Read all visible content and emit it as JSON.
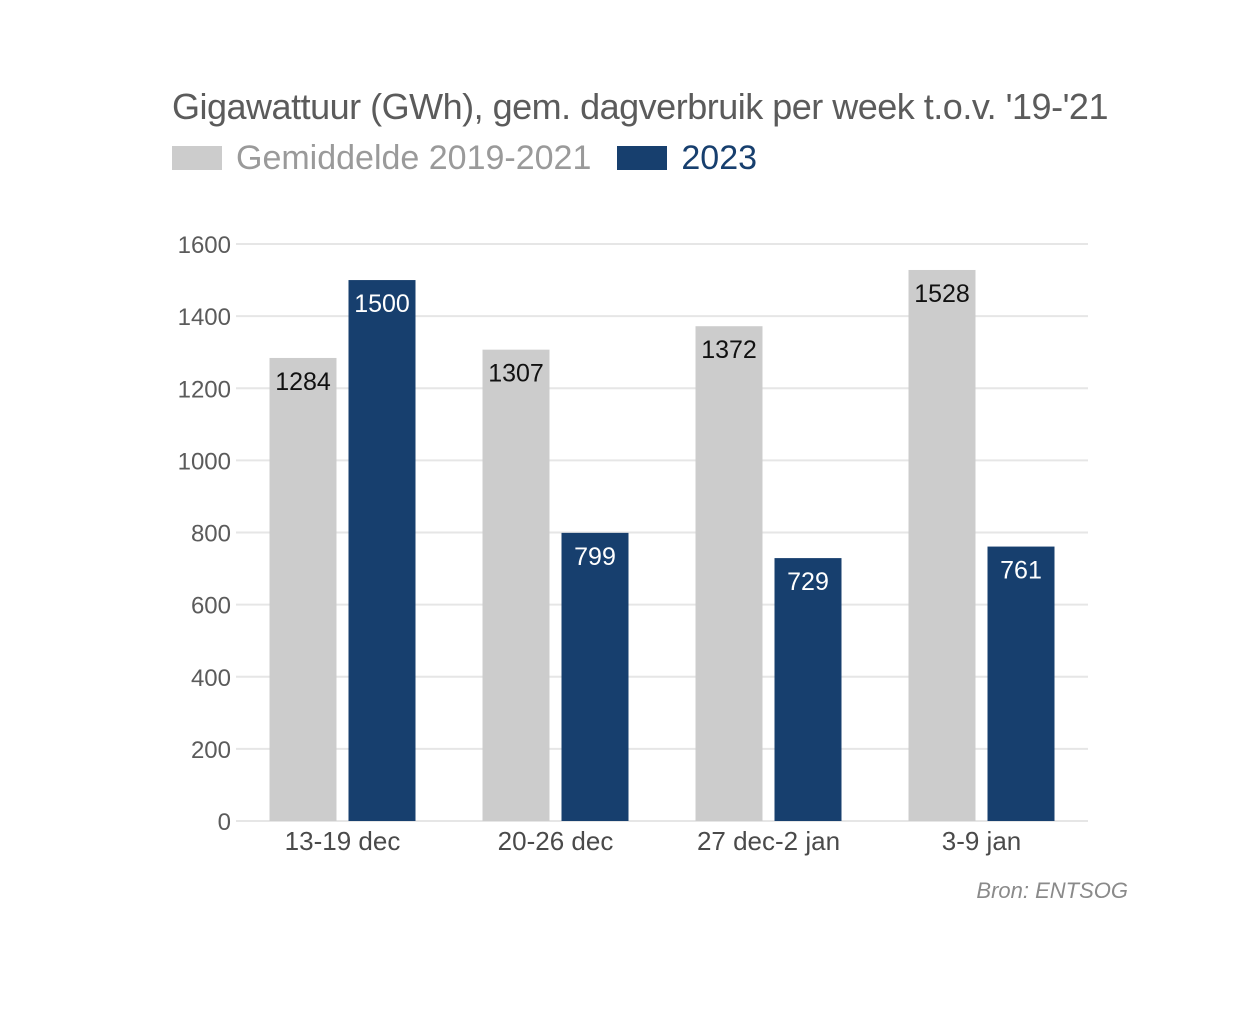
{
  "chart_data": {
    "type": "bar",
    "title": "Gigawattuur (GWh), gem. dagverbruik per week t.o.v. '19-'21",
    "categories": [
      "13-19 dec",
      "20-26 dec",
      "27 dec-2 jan",
      "3-9 jan"
    ],
    "series": [
      {
        "name": "Gemiddelde 2019-2021",
        "color": "#cccccc",
        "label_color": "#111111",
        "values": [
          1284,
          1307,
          1372,
          1528
        ]
      },
      {
        "name": "2023",
        "color": "#173f6e",
        "label_color": "#ffffff",
        "values": [
          1500,
          799,
          729,
          761
        ]
      }
    ],
    "ylim": [
      0,
      1600
    ],
    "yticks": [
      0,
      200,
      400,
      600,
      800,
      1000,
      1200,
      1400,
      1600
    ],
    "grid": true,
    "legend_position": "top-left",
    "source": "Bron: ENTSOG"
  },
  "colors": {
    "title": "#5b5b5b",
    "grid": "#e6e6e6",
    "avg_legend_text": "#9a9a9a",
    "y2023_legend_text": "#173f6e"
  }
}
